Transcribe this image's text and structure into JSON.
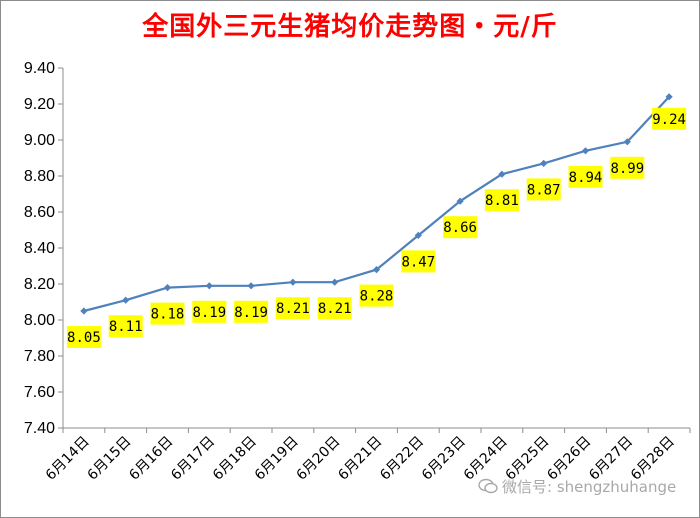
{
  "chart_data": {
    "type": "line",
    "title": "全国外三元生猪均价走势图・元/斤",
    "categories": [
      "6月14日",
      "6月15日",
      "6月16日",
      "6月17日",
      "6月18日",
      "6月19日",
      "6月20日",
      "6月21日",
      "6月22日",
      "6月23日",
      "6月24日",
      "6月25日",
      "6月26日",
      "6月27日",
      "6月28日"
    ],
    "values": [
      8.05,
      8.11,
      8.18,
      8.19,
      8.19,
      8.21,
      8.21,
      8.28,
      8.47,
      8.66,
      8.81,
      8.87,
      8.94,
      8.99,
      9.24
    ],
    "data_labels": [
      "8.05",
      "8.11",
      "8.18",
      "8.19",
      "8.19",
      "8.21",
      "8.21",
      "8.28",
      "8.47",
      "8.66",
      "8.81",
      "8.87",
      "8.94",
      "8.99",
      "9.24"
    ],
    "ylim": [
      7.4,
      9.4
    ],
    "yticks": [
      "7.40",
      "7.60",
      "7.80",
      "8.00",
      "8.20",
      "8.40",
      "8.60",
      "8.80",
      "9.00",
      "9.20",
      "9.40"
    ],
    "grid": false,
    "line_color": "#4f81bd",
    "label_bg_color": "#ffff00",
    "title_color": "#ff0000"
  },
  "watermark": {
    "text": "微信号: shengzhuhange",
    "icon": "wechat-icon"
  }
}
